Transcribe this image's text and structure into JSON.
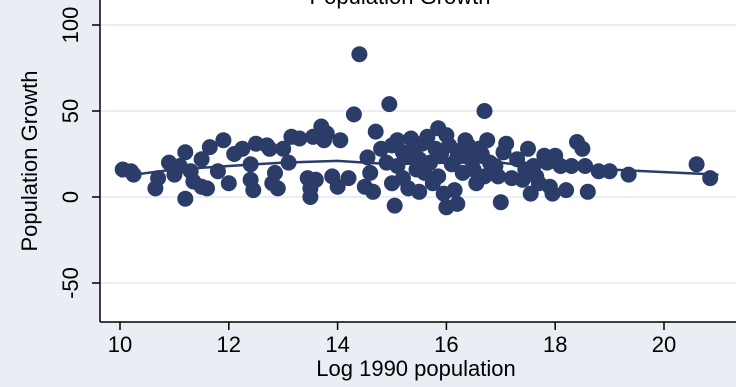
{
  "chart_data": {
    "type": "scatter",
    "title": "Population Growth",
    "xlabel": "Log 1990 population",
    "ylabel": "Population Growth",
    "xlim": [
      10,
      21
    ],
    "ylim": [
      -50,
      100
    ],
    "xticks": [
      10,
      12,
      14,
      16,
      18,
      20
    ],
    "yticks": [
      -50,
      0,
      50,
      100
    ],
    "grid": "horizontal",
    "colors": {
      "background": "#e9eef5",
      "plot_area": "#ffffff",
      "gridline": "#e9eef5",
      "points": "#2a3c67",
      "fit_line": "#2a3c67"
    },
    "series": [
      {
        "type": "scatter",
        "points": [
          [
            10.05,
            16
          ],
          [
            10.2,
            15
          ],
          [
            10.25,
            13
          ],
          [
            10.65,
            5
          ],
          [
            10.7,
            11
          ],
          [
            10.9,
            20
          ],
          [
            11.0,
            13
          ],
          [
            11.1,
            18
          ],
          [
            11.2,
            -1
          ],
          [
            11.3,
            15
          ],
          [
            11.2,
            26
          ],
          [
            11.35,
            9
          ],
          [
            11.5,
            22
          ],
          [
            11.5,
            6
          ],
          [
            11.6,
            5
          ],
          [
            11.65,
            29
          ],
          [
            11.8,
            15
          ],
          [
            11.9,
            33
          ],
          [
            12.0,
            8
          ],
          [
            12.1,
            25
          ],
          [
            12.25,
            28
          ],
          [
            12.4,
            19
          ],
          [
            12.4,
            10
          ],
          [
            12.45,
            4
          ],
          [
            12.5,
            31
          ],
          [
            12.7,
            30
          ],
          [
            12.75,
            28
          ],
          [
            12.8,
            8
          ],
          [
            12.85,
            14
          ],
          [
            12.9,
            5
          ],
          [
            13.0,
            28
          ],
          [
            13.1,
            20
          ],
          [
            13.15,
            35
          ],
          [
            13.3,
            34
          ],
          [
            13.45,
            11
          ],
          [
            13.5,
            5
          ],
          [
            13.5,
            0
          ],
          [
            13.55,
            35
          ],
          [
            13.6,
            10
          ],
          [
            13.7,
            41
          ],
          [
            13.75,
            33
          ],
          [
            13.8,
            37
          ],
          [
            13.9,
            12
          ],
          [
            14.0,
            6
          ],
          [
            14.05,
            33
          ],
          [
            14.2,
            11
          ],
          [
            14.3,
            48
          ],
          [
            14.4,
            83
          ],
          [
            14.5,
            6
          ],
          [
            14.55,
            23
          ],
          [
            14.6,
            14
          ],
          [
            14.65,
            3
          ],
          [
            14.7,
            38
          ],
          [
            14.8,
            28
          ],
          [
            14.9,
            20
          ],
          [
            14.95,
            54
          ],
          [
            15.0,
            8
          ],
          [
            15.0,
            30
          ],
          [
            15.05,
            -5
          ],
          [
            15.1,
            33
          ],
          [
            15.1,
            18
          ],
          [
            15.2,
            26
          ],
          [
            15.2,
            11
          ],
          [
            15.3,
            5
          ],
          [
            15.3,
            24
          ],
          [
            15.35,
            34
          ],
          [
            15.4,
            28
          ],
          [
            15.45,
            16
          ],
          [
            15.5,
            22
          ],
          [
            15.5,
            3
          ],
          [
            15.55,
            31
          ],
          [
            15.6,
            14
          ],
          [
            15.65,
            35
          ],
          [
            15.7,
            20
          ],
          [
            15.75,
            8
          ],
          [
            15.8,
            28
          ],
          [
            15.85,
            40
          ],
          [
            15.85,
            12
          ],
          [
            15.9,
            25
          ],
          [
            15.95,
            2
          ],
          [
            16.0,
            36
          ],
          [
            16.0,
            -6
          ],
          [
            16.05,
            30
          ],
          [
            16.1,
            19
          ],
          [
            16.15,
            4
          ],
          [
            16.2,
            23
          ],
          [
            16.2,
            -4
          ],
          [
            16.25,
            27
          ],
          [
            16.3,
            14
          ],
          [
            16.35,
            33
          ],
          [
            16.4,
            30
          ],
          [
            16.45,
            22
          ],
          [
            16.5,
            16
          ],
          [
            16.55,
            8
          ],
          [
            16.6,
            28
          ],
          [
            16.65,
            25
          ],
          [
            16.7,
            50
          ],
          [
            16.7,
            12
          ],
          [
            16.75,
            33
          ],
          [
            16.8,
            20
          ],
          [
            16.9,
            18
          ],
          [
            16.95,
            12
          ],
          [
            17.0,
            -3
          ],
          [
            17.05,
            26
          ],
          [
            17.1,
            31
          ],
          [
            17.2,
            11
          ],
          [
            17.3,
            22
          ],
          [
            17.4,
            10
          ],
          [
            17.45,
            16
          ],
          [
            17.5,
            28
          ],
          [
            17.55,
            2
          ],
          [
            17.6,
            18
          ],
          [
            17.65,
            12
          ],
          [
            17.7,
            8
          ],
          [
            17.8,
            24
          ],
          [
            17.85,
            20
          ],
          [
            17.9,
            6
          ],
          [
            17.95,
            2
          ],
          [
            18.0,
            24
          ],
          [
            18.1,
            18
          ],
          [
            18.2,
            4
          ],
          [
            18.3,
            18
          ],
          [
            18.4,
            32
          ],
          [
            18.5,
            28
          ],
          [
            18.55,
            18
          ],
          [
            18.6,
            3
          ],
          [
            18.8,
            15
          ],
          [
            19.0,
            15
          ],
          [
            19.35,
            13
          ],
          [
            20.6,
            19
          ],
          [
            20.85,
            11
          ]
        ]
      },
      {
        "type": "line",
        "points": [
          [
            10,
            12
          ],
          [
            11,
            16
          ],
          [
            12,
            18
          ],
          [
            13,
            20
          ],
          [
            14,
            21
          ],
          [
            14.5,
            20
          ],
          [
            15,
            19
          ],
          [
            16,
            20
          ],
          [
            17,
            20
          ],
          [
            17.5,
            18
          ],
          [
            18,
            17
          ],
          [
            19,
            16
          ],
          [
            21,
            13
          ]
        ]
      }
    ]
  }
}
